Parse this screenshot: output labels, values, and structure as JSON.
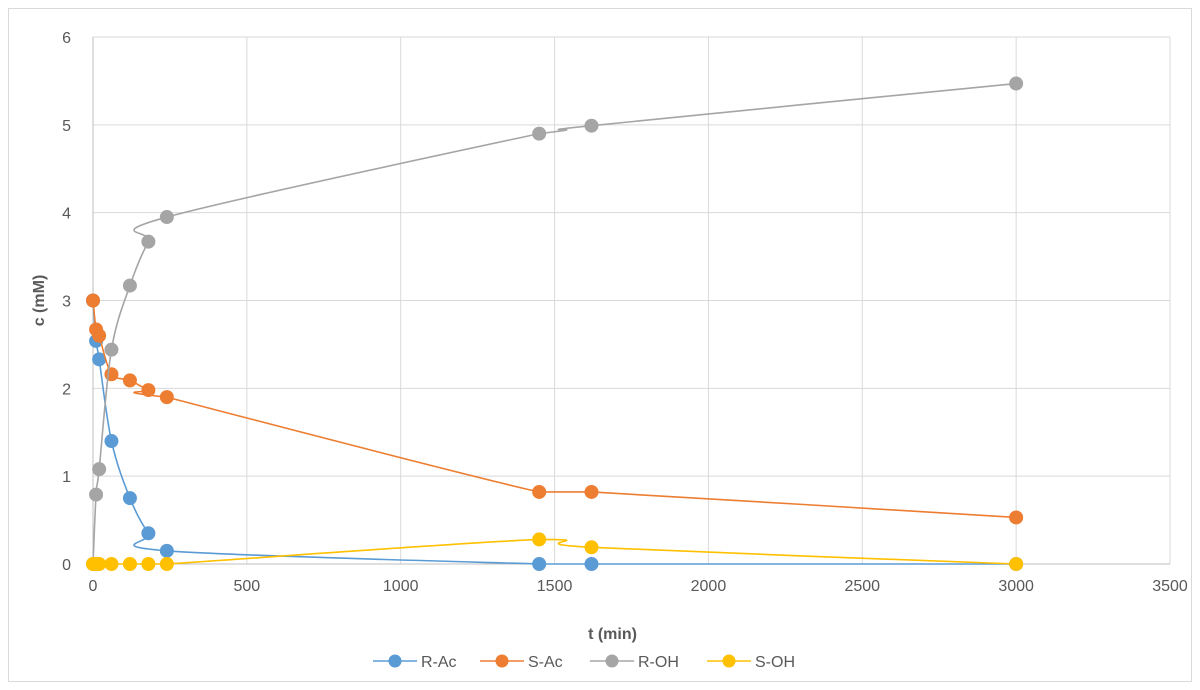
{
  "chart_data": {
    "type": "scatter",
    "title": "",
    "xlabel": "t (min)",
    "ylabel": "c (mM)",
    "xlim": [
      0,
      3500
    ],
    "ylim": [
      0,
      6
    ],
    "xticks": [
      0,
      500,
      1000,
      1500,
      2000,
      2500,
      3000,
      3500
    ],
    "yticks": [
      0,
      1,
      2,
      3,
      4,
      5,
      6
    ],
    "grid": true,
    "legend_position": "bottom",
    "series": [
      {
        "name": "R-Ac",
        "color": "#5b9bd5",
        "x": [
          0,
          10,
          20,
          60,
          120,
          180,
          240,
          1450,
          1620,
          3000
        ],
        "y": [
          3.0,
          2.54,
          2.33,
          1.4,
          0.75,
          0.35,
          0.15,
          0.0,
          0.0,
          0.0
        ]
      },
      {
        "name": "S-Ac",
        "color": "#ed7d31",
        "x": [
          0,
          10,
          20,
          60,
          120,
          180,
          240,
          1450,
          1620,
          3000
        ],
        "y": [
          3.0,
          2.67,
          2.6,
          2.16,
          2.09,
          1.98,
          1.9,
          0.82,
          0.82,
          0.53
        ]
      },
      {
        "name": "R-OH",
        "color": "#a5a5a5",
        "x": [
          0,
          10,
          20,
          60,
          120,
          180,
          240,
          1450,
          1620,
          3000
        ],
        "y": [
          0.0,
          0.79,
          1.08,
          2.44,
          3.17,
          3.67,
          3.95,
          4.9,
          4.99,
          5.47
        ]
      },
      {
        "name": "S-OH",
        "color": "#ffc000",
        "x": [
          0,
          10,
          20,
          60,
          120,
          180,
          240,
          1450,
          1620,
          3000
        ],
        "y": [
          0.0,
          0.0,
          0.0,
          0.0,
          0.0,
          0.0,
          0.0,
          0.28,
          0.19,
          0.0
        ]
      }
    ]
  }
}
